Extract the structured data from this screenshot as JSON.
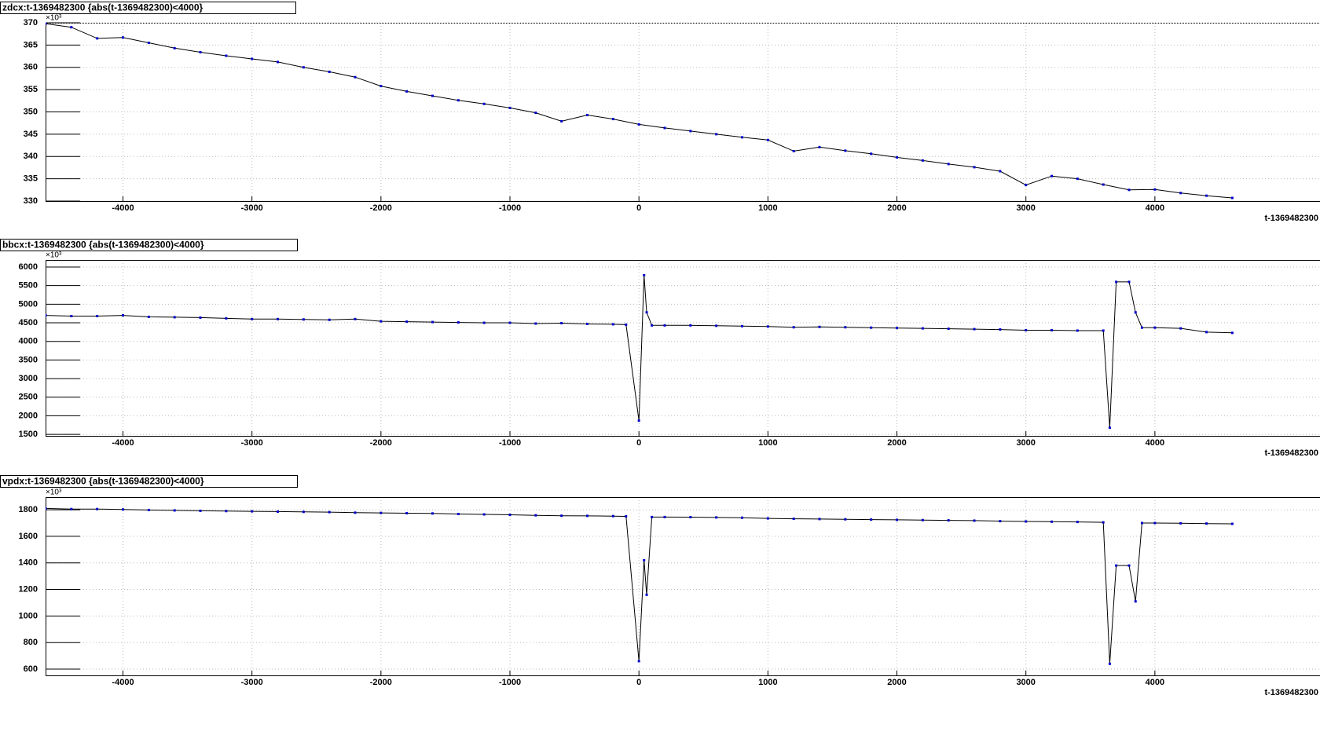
{
  "chart_data": [
    {
      "type": "line",
      "title": "zdcx:t-1369482300 {abs(t-1369482300)<4000}",
      "x_label": "t-1369482300",
      "y_multiplier": "×10³",
      "xlim": [
        -4600,
        5280
      ],
      "xticks": [
        -4000,
        -3000,
        -2000,
        -1000,
        0,
        1000,
        2000,
        3000,
        4000
      ],
      "ylim": [
        330,
        370
      ],
      "yticks": [
        330,
        335,
        340,
        345,
        350,
        355,
        360,
        365,
        370
      ],
      "grid": true,
      "marker_color": "#0000cc",
      "line_color": "#000000",
      "x": [
        -4600,
        -4400,
        -4200,
        -4000,
        -3800,
        -3600,
        -3400,
        -3200,
        -3000,
        -2800,
        -2600,
        -2400,
        -2200,
        -2000,
        -1800,
        -1600,
        -1400,
        -1200,
        -1000,
        -800,
        -600,
        -400,
        -200,
        0,
        200,
        400,
        600,
        800,
        1000,
        1200,
        1400,
        1600,
        1800,
        2000,
        2200,
        2400,
        2600,
        2800,
        3000,
        3200,
        3400,
        3600,
        3800,
        4000,
        4200,
        4400,
        4600
      ],
      "values": [
        369.8,
        369,
        366.5,
        366.7,
        365.5,
        364.3,
        363.4,
        362.6,
        361.9,
        361.2,
        360,
        359,
        357.8,
        355.8,
        354.6,
        353.6,
        352.6,
        351.8,
        350.9,
        349.8,
        347.9,
        349.3,
        348.4,
        347.2,
        346.4,
        345.7,
        345,
        344.3,
        343.7,
        341.2,
        342.1,
        341.3,
        340.6,
        339.8,
        339.1,
        338.3,
        337.6,
        336.7,
        333.6,
        335.6,
        335,
        333.7,
        332.5,
        332.6,
        331.8,
        331.2,
        330.7
      ]
    },
    {
      "type": "line",
      "title": "bbcx:t-1369482300 {abs(t-1369482300)<4000}",
      "x_label": "t-1369482300",
      "y_multiplier": "×10³",
      "xlim": [
        -4600,
        5280
      ],
      "xticks": [
        -4000,
        -3000,
        -2000,
        -1000,
        0,
        1000,
        2000,
        3000,
        4000
      ],
      "ylim": [
        1460,
        6190
      ],
      "yticks": [
        1500,
        2000,
        2500,
        3000,
        3500,
        4000,
        4500,
        5000,
        5500,
        6000
      ],
      "grid": true,
      "marker_color": "#0000cc",
      "line_color": "#000000",
      "x": [
        -4600,
        -4400,
        -4200,
        -4000,
        -3800,
        -3600,
        -3400,
        -3200,
        -3000,
        -2800,
        -2600,
        -2400,
        -2200,
        -2000,
        -1800,
        -1600,
        -1400,
        -1200,
        -1000,
        -800,
        -600,
        -400,
        -200,
        -100,
        0,
        40,
        60,
        100,
        200,
        400,
        600,
        800,
        1000,
        1200,
        1400,
        1600,
        1800,
        2000,
        2200,
        2400,
        2600,
        2800,
        3000,
        3200,
        3400,
        3600,
        3650,
        3700,
        3800,
        3850,
        3900,
        4000,
        4200,
        4400,
        4600
      ],
      "values": [
        4700,
        4680,
        4680,
        4700,
        4660,
        4650,
        4640,
        4620,
        4600,
        4600,
        4590,
        4580,
        4600,
        4540,
        4530,
        4520,
        4510,
        4500,
        4500,
        4480,
        4490,
        4470,
        4460,
        4450,
        1870,
        5780,
        4780,
        4430,
        4430,
        4430,
        4420,
        4410,
        4400,
        4380,
        4390,
        4380,
        4370,
        4360,
        4350,
        4340,
        4330,
        4320,
        4300,
        4300,
        4290,
        4290,
        1680,
        5600,
        5600,
        4780,
        4370,
        4370,
        4350,
        4250,
        4230
      ]
    },
    {
      "type": "line",
      "title": "vpdx:t-1369482300 {abs(t-1369482300)<4000}",
      "x_label": "t-1369482300",
      "y_multiplier": "×10³",
      "xlim": [
        -4600,
        5280
      ],
      "xticks": [
        -4000,
        -3000,
        -2000,
        -1000,
        0,
        1000,
        2000,
        3000,
        4000
      ],
      "ylim": [
        553,
        1895
      ],
      "yticks": [
        600,
        800,
        1000,
        1200,
        1400,
        1600,
        1800
      ],
      "grid": true,
      "marker_color": "#0000cc",
      "line_color": "#000000",
      "x": [
        -4600,
        -4400,
        -4200,
        -4000,
        -3800,
        -3600,
        -3400,
        -3200,
        -3000,
        -2800,
        -2600,
        -2400,
        -2200,
        -2000,
        -1800,
        -1600,
        -1400,
        -1200,
        -1000,
        -800,
        -600,
        -400,
        -200,
        -100,
        0,
        40,
        60,
        100,
        200,
        400,
        600,
        800,
        1000,
        1200,
        1400,
        1600,
        1800,
        2000,
        2200,
        2400,
        2600,
        2800,
        3000,
        3200,
        3400,
        3600,
        3650,
        3700,
        3800,
        3850,
        3900,
        4000,
        4200,
        4400,
        4600
      ],
      "values": [
        1810,
        1805,
        1805,
        1802,
        1798,
        1795,
        1792,
        1790,
        1788,
        1786,
        1784,
        1782,
        1778,
        1776,
        1774,
        1772,
        1768,
        1765,
        1762,
        1758,
        1755,
        1754,
        1752,
        1750,
        660,
        1420,
        1160,
        1745,
        1745,
        1744,
        1742,
        1740,
        1735,
        1732,
        1730,
        1728,
        1726,
        1724,
        1722,
        1720,
        1718,
        1714,
        1712,
        1710,
        1708,
        1705,
        640,
        1380,
        1380,
        1110,
        1700,
        1700,
        1698,
        1696,
        1694
      ]
    }
  ]
}
